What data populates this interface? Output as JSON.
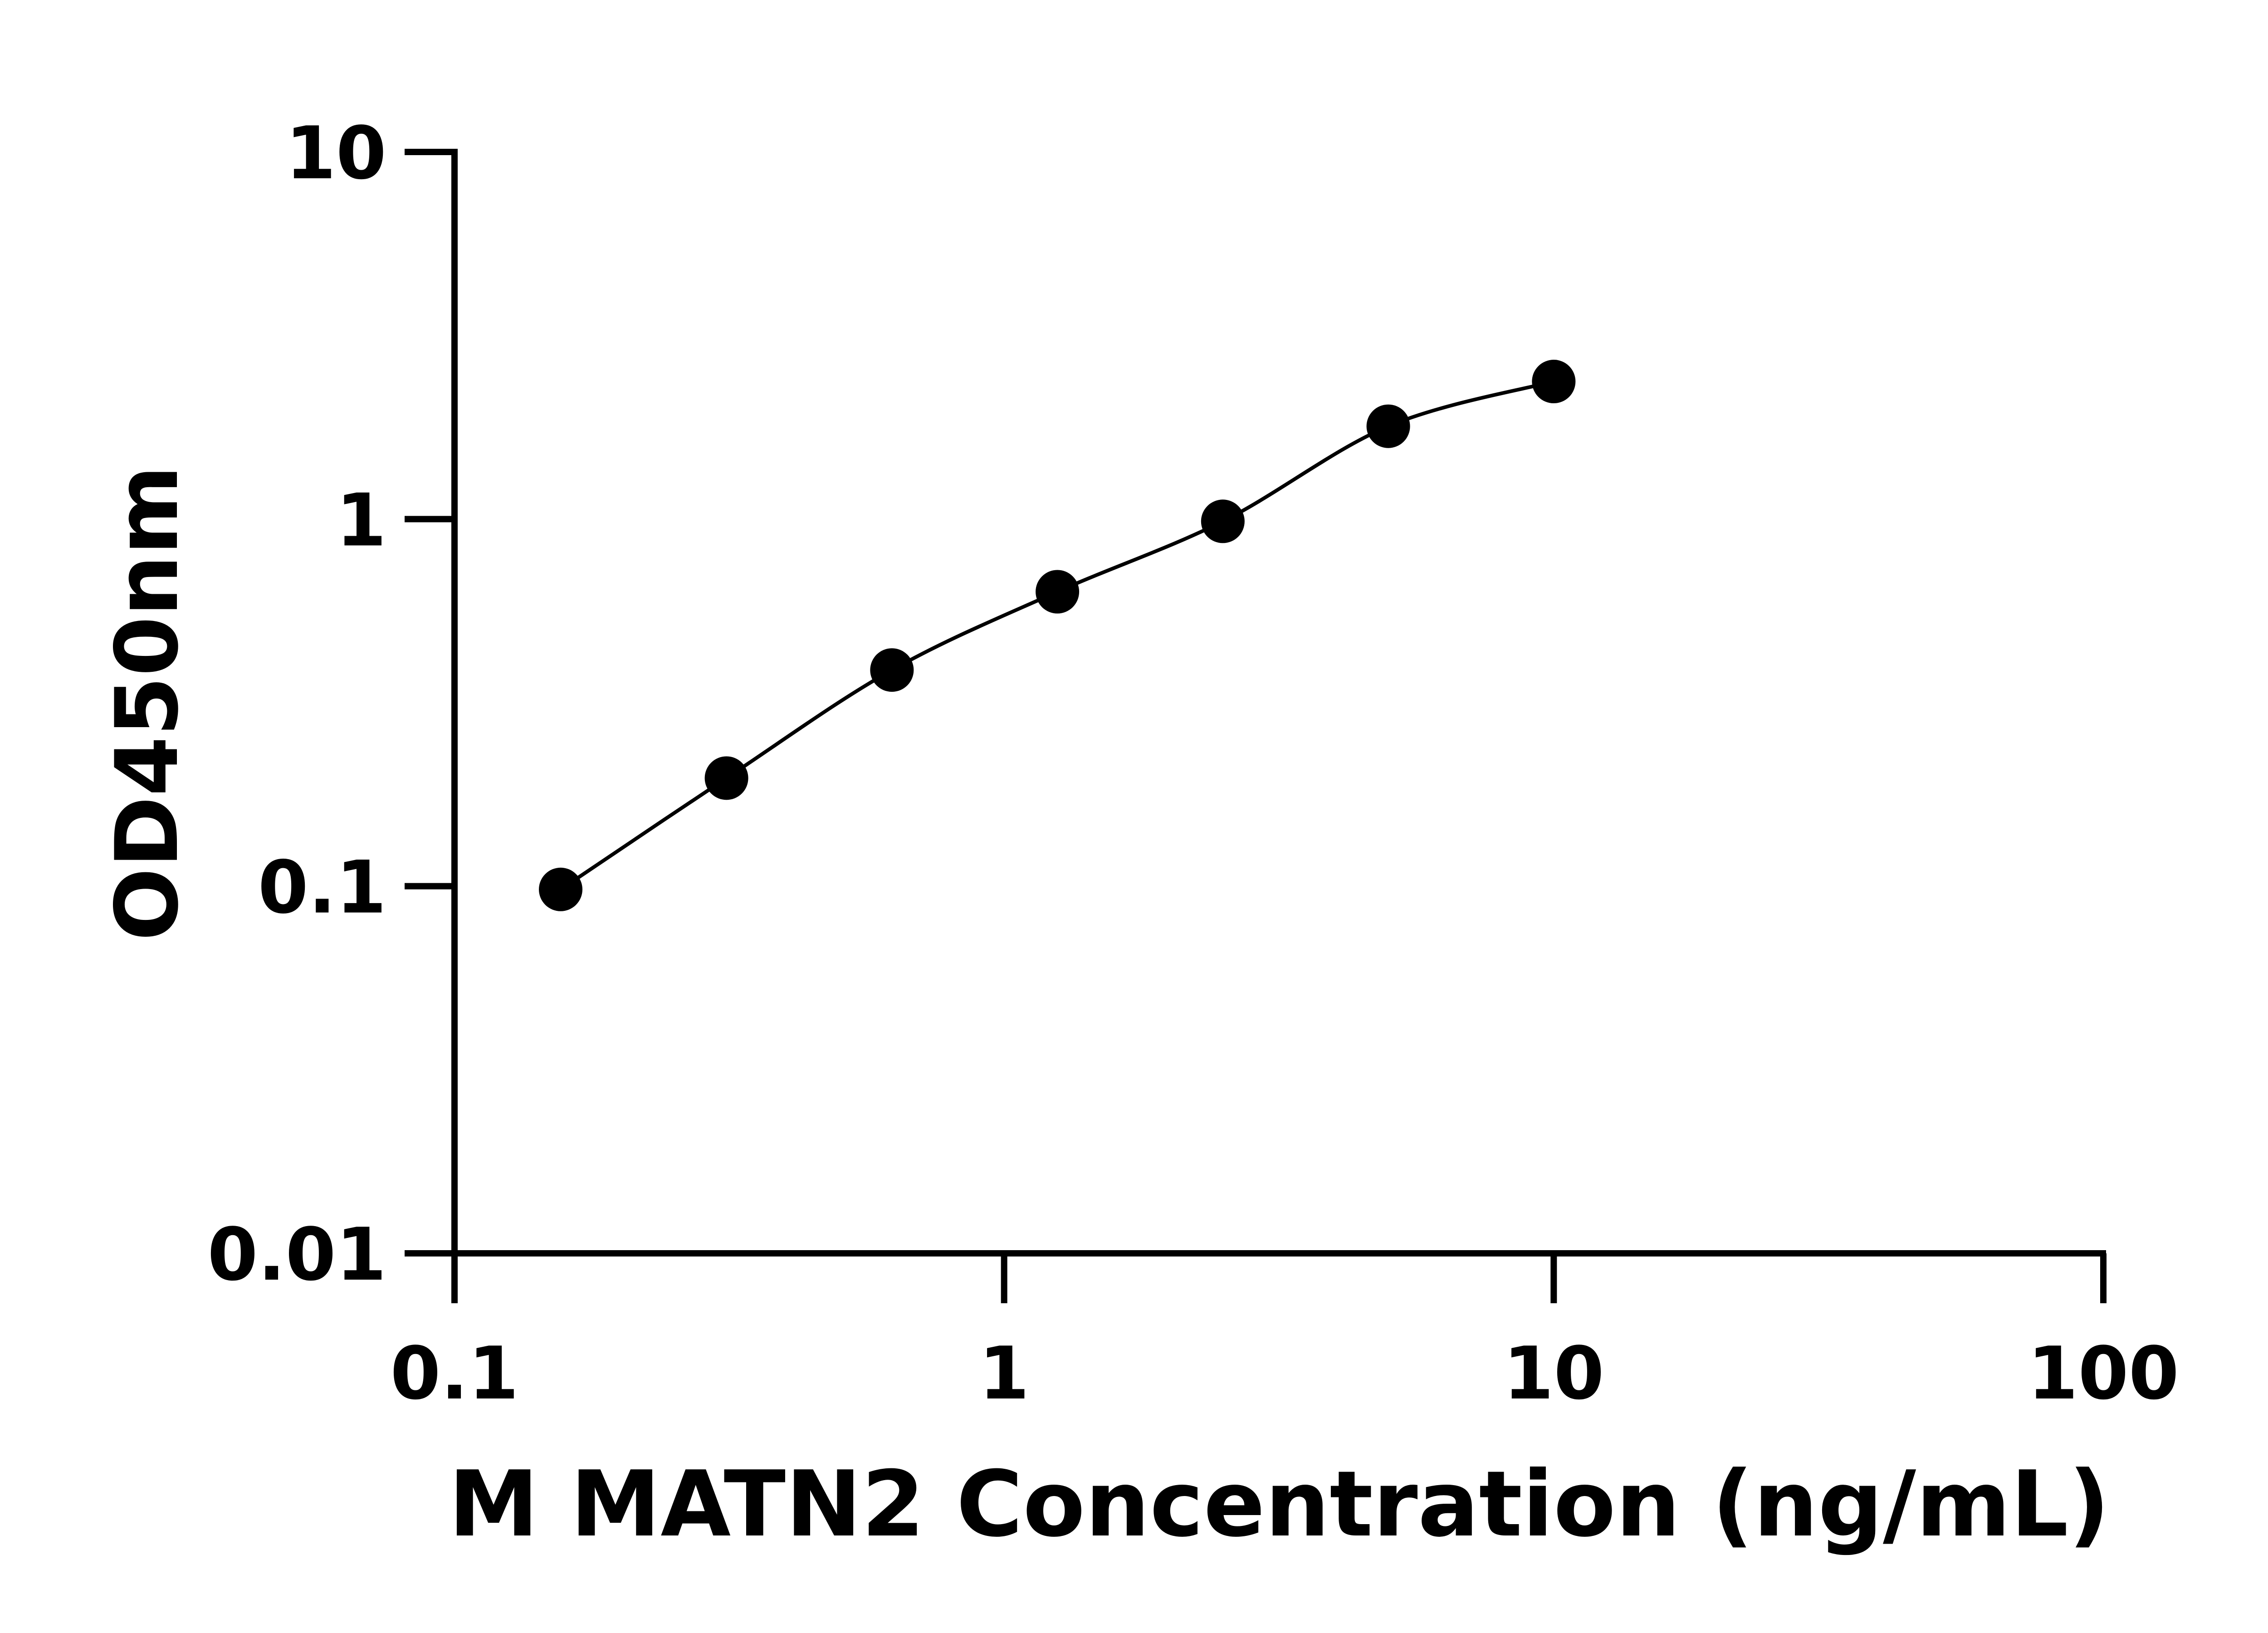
{
  "chart_data": {
    "type": "scatter",
    "title": "",
    "xlabel": "M MATN2 Concentration (ng/mL)",
    "ylabel": "OD450nm",
    "x_scale": "log",
    "y_scale": "log",
    "xlim": [
      0.1,
      100
    ],
    "ylim": [
      0.01,
      10
    ],
    "x_ticks": [
      "0.1",
      "1",
      "10",
      "100"
    ],
    "y_ticks": [
      "0.01",
      "0.1",
      "1",
      "10"
    ],
    "grid": false,
    "legend": "none",
    "series": [
      {
        "x": [
          0.156,
          0.3125,
          0.625,
          1.25,
          2.5,
          5,
          10
        ],
        "y": [
          0.098,
          0.197,
          0.388,
          0.634,
          0.986,
          1.79,
          2.37
        ],
        "fit_line": true,
        "color": "#000000"
      }
    ]
  }
}
